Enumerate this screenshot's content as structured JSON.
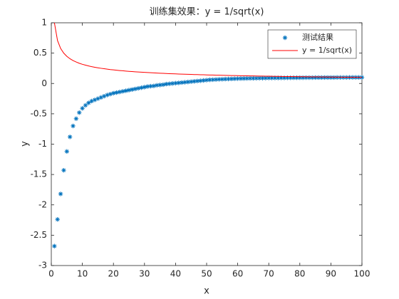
{
  "chart_data": {
    "type": "scatter-line",
    "title": "训练集效果：y = 1/sqrt(x)",
    "x_label": "x",
    "y_label": "y",
    "x": [
      1,
      2,
      3,
      4,
      5,
      6,
      7,
      8,
      9,
      10,
      11,
      12,
      13,
      14,
      15,
      16,
      17,
      18,
      19,
      20,
      21,
      22,
      23,
      24,
      25,
      26,
      27,
      28,
      29,
      30,
      31,
      32,
      33,
      34,
      35,
      36,
      37,
      38,
      39,
      40,
      41,
      42,
      43,
      44,
      45,
      46,
      47,
      48,
      49,
      50,
      51,
      52,
      53,
      54,
      55,
      56,
      57,
      58,
      59,
      60,
      61,
      62,
      63,
      64,
      65,
      66,
      67,
      68,
      69,
      70,
      71,
      72,
      73,
      74,
      75,
      76,
      77,
      78,
      79,
      80,
      81,
      82,
      83,
      84,
      85,
      86,
      87,
      88,
      89,
      90,
      91,
      92,
      93,
      94,
      95,
      96,
      97,
      98,
      99,
      100
    ],
    "series": [
      {
        "name": "测试结果",
        "color": "#0072bd",
        "marker": "asterisk",
        "values": [
          -2.68,
          -2.24,
          -1.82,
          -1.43,
          -1.12,
          -0.88,
          -0.7,
          -0.58,
          -0.48,
          -0.41,
          -0.36,
          -0.32,
          -0.29,
          -0.27,
          -0.25,
          -0.23,
          -0.21,
          -0.19,
          -0.175,
          -0.16,
          -0.15,
          -0.14,
          -0.13,
          -0.12,
          -0.11,
          -0.1,
          -0.09,
          -0.08,
          -0.07,
          -0.06,
          -0.05,
          -0.045,
          -0.04,
          -0.03,
          -0.025,
          -0.02,
          -0.01,
          -0.005,
          0,
          0.005,
          0.01,
          0.015,
          0.02,
          0.025,
          0.03,
          0.035,
          0.04,
          0.045,
          0.05,
          0.055,
          0.06,
          0.062,
          0.065,
          0.068,
          0.07,
          0.072,
          0.074,
          0.076,
          0.078,
          0.08,
          0.081,
          0.082,
          0.083,
          0.084,
          0.085,
          0.086,
          0.087,
          0.088,
          0.089,
          0.09,
          0.09,
          0.091,
          0.091,
          0.092,
          0.092,
          0.093,
          0.093,
          0.094,
          0.094,
          0.095,
          0.095,
          0.096,
          0.096,
          0.096,
          0.097,
          0.097,
          0.097,
          0.098,
          0.098,
          0.098,
          0.098,
          0.099,
          0.099,
          0.099,
          0.099,
          0.1,
          0.1,
          0.1,
          0.1,
          0.1
        ]
      },
      {
        "name": "y = 1/sqrt(x)",
        "color": "#ff0000",
        "marker": "line",
        "values": [
          1,
          0.707,
          0.577,
          0.5,
          0.447,
          0.408,
          0.378,
          0.354,
          0.333,
          0.316,
          0.302,
          0.289,
          0.277,
          0.267,
          0.258,
          0.25,
          0.243,
          0.236,
          0.229,
          0.224,
          0.218,
          0.213,
          0.209,
          0.204,
          0.2,
          0.196,
          0.192,
          0.189,
          0.186,
          0.183,
          0.18,
          0.177,
          0.174,
          0.171,
          0.169,
          0.167,
          0.164,
          0.162,
          0.16,
          0.158,
          0.156,
          0.154,
          0.152,
          0.151,
          0.149,
          0.147,
          0.146,
          0.144,
          0.143,
          0.141,
          0.14,
          0.139,
          0.137,
          0.136,
          0.135,
          0.134,
          0.132,
          0.131,
          0.13,
          0.129,
          0.128,
          0.127,
          0.126,
          0.125,
          0.124,
          0.123,
          0.122,
          0.121,
          0.12,
          0.12,
          0.119,
          0.118,
          0.117,
          0.116,
          0.115,
          0.115,
          0.114,
          0.113,
          0.113,
          0.112,
          0.111,
          0.11,
          0.11,
          0.109,
          0.108,
          0.108,
          0.107,
          0.107,
          0.106,
          0.105,
          0.105,
          0.104,
          0.104,
          0.103,
          0.103,
          0.102,
          0.102,
          0.101,
          0.101,
          0.1
        ]
      }
    ],
    "xlim": [
      0,
      100
    ],
    "xticks": [
      0,
      10,
      20,
      30,
      40,
      50,
      60,
      70,
      80,
      90,
      100
    ],
    "ylim": [
      -3,
      1
    ],
    "yticks": [
      -3,
      -2.5,
      -2,
      -1.5,
      -1,
      -0.5,
      0,
      0.5,
      1
    ],
    "grid": false,
    "legend": "northeast"
  }
}
